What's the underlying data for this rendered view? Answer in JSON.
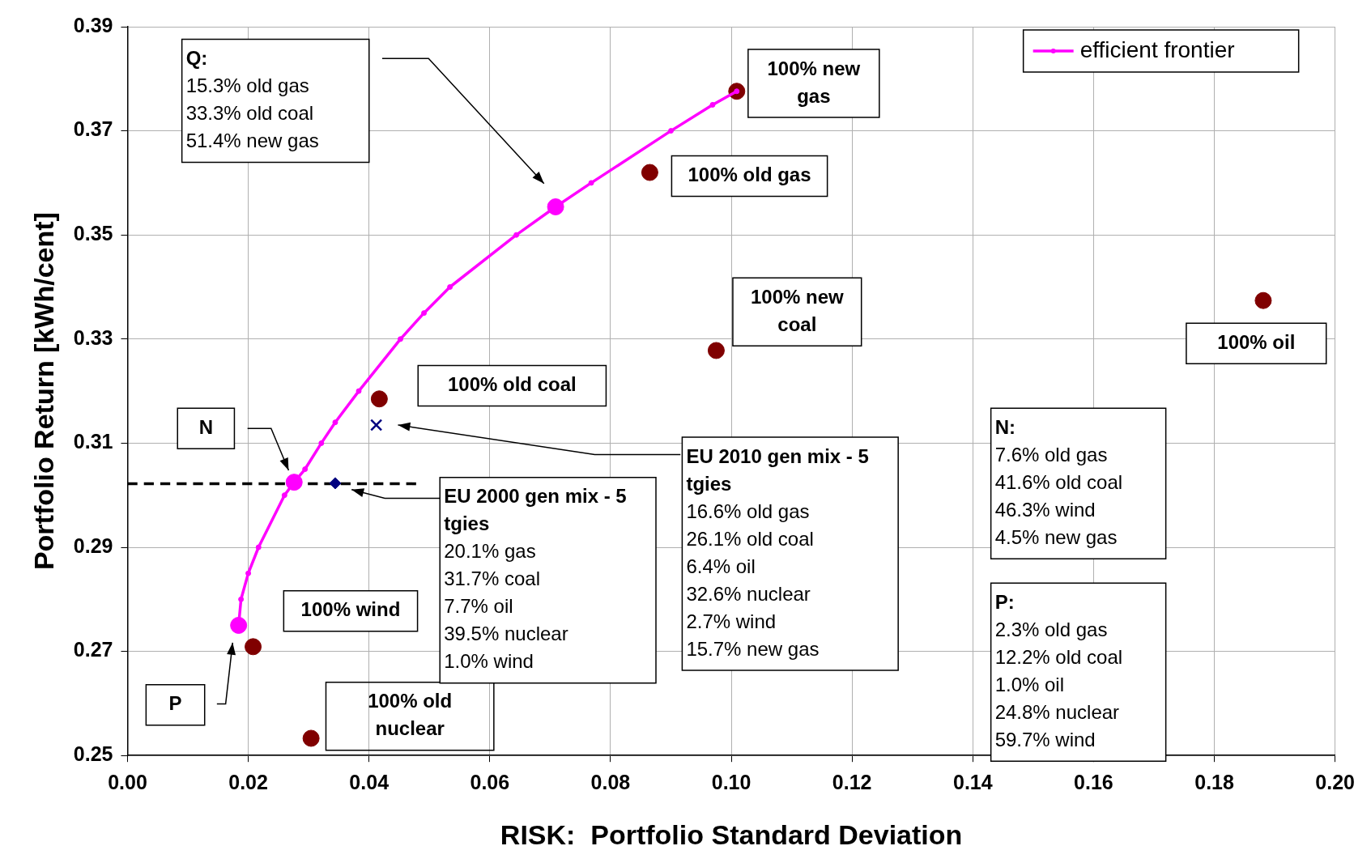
{
  "chart_data": {
    "type": "scatter",
    "xlabel": "RISK:  Portfolio Standard Deviation",
    "ylabel": "Portfolio Return [kWh/cent]",
    "xlim": [
      0,
      0.2
    ],
    "xticks": [
      {
        "value": 0,
        "label": "0.00"
      },
      0.02,
      0.04,
      0.06,
      0.08,
      {
        "value": 0.1,
        "label": "0.10"
      },
      0.12,
      0.14,
      0.16,
      0.18,
      {
        "value": 0.2,
        "label": "0.20"
      }
    ],
    "ylim": [
      0.25,
      0.39
    ],
    "yticks": [
      0.25,
      0.27,
      0.29,
      0.31,
      0.33,
      0.35,
      0.37,
      0.39
    ],
    "grid": true,
    "legend": "top right",
    "series": [
      {
        "name": "efficient frontier",
        "type": "line",
        "color": "#ff00ff",
        "marker": "circle",
        "line_style": "solid",
        "x": [
          0.0184,
          0.0188,
          0.02,
          0.0217,
          0.026,
          0.0276,
          0.0294,
          0.0321,
          0.0344,
          0.0383,
          0.0452,
          0.0491,
          0.0534,
          0.0644,
          0.0709,
          0.0768,
          0.09,
          0.0969,
          0.1009
        ],
        "values": [
          0.275,
          0.28,
          0.285,
          0.29,
          0.3,
          0.3025,
          0.305,
          0.31,
          0.314,
          0.32,
          0.33,
          0.335,
          0.34,
          0.35,
          0.3554,
          0.36,
          0.37,
          0.375,
          0.3776
        ]
      },
      {
        "type": "scatter",
        "color": "#ff00ff",
        "marker": "circle",
        "x": [
          0.0184,
          0.0276,
          0.0709
        ],
        "values": [
          0.275,
          0.3025,
          0.3554
        ]
      },
      {
        "type": "scatter",
        "color": "#800000",
        "marker": "circle",
        "x": [
          0.1009,
          0.0865,
          0.0975,
          0.1881,
          0.0417,
          0.0208,
          0.0304
        ],
        "values": [
          0.3776,
          0.362,
          0.3278,
          0.3374,
          0.3185,
          0.2709,
          0.2533
        ]
      },
      {
        "type": "scatter",
        "color": "#000080",
        "marker": "cross",
        "x": [
          0.0412
        ],
        "values": [
          0.3135
        ]
      },
      {
        "type": "scatter",
        "color": "#000080",
        "marker": "diamond",
        "x": [
          0.0344
        ],
        "values": [
          0.3023
        ]
      },
      {
        "type": "line",
        "color": "#000000",
        "marker": "none",
        "line_style": "dashed",
        "x": [
          0,
          0.0478
        ],
        "values": [
          0.3022,
          0.3022
        ]
      }
    ],
    "annotations": [
      {
        "text": "100% new\ngas",
        "x": 0.1009,
        "y": 0.3776
      },
      {
        "text": "100% old gas",
        "x": 0.0865,
        "y": 0.362
      },
      {
        "text": "100% new\ncoal",
        "x": 0.0975,
        "y": 0.3278
      },
      {
        "text": "100% oil",
        "x": 0.1881,
        "y": 0.3374
      },
      "100% old coal",
      {
        "text": "100% wind",
        "x": 0.0208,
        "y": 0.2709
      },
      {
        "text": "100% old\nnuclear",
        "x": 0.0304,
        "y": 0.2533
      },
      "Q:\n15.3% old gas\n33.3% old coal\n51.4% new gas",
      "N",
      "P",
      "EU 2010 gen mix - 5\ntgies\n16.6% old gas\n26.1% old coal\n6.4% oil\n32.6% nuclear\n2.7% wind\n15.7% new gas",
      "EU 2000 gen mix - 5\ntgies\n20.1% gas\n31.7% coal\n7.7% oil\n39.5% nuclear\n1.0% wind",
      "N:\n7.6% old gas\n41.6% old coal\n46.3% wind\n4.5% new gas",
      "P:\n2.3% old gas\n12.2% old coal\n1.0% oil\n24.8% nuclear\n59.7% wind"
    ]
  }
}
